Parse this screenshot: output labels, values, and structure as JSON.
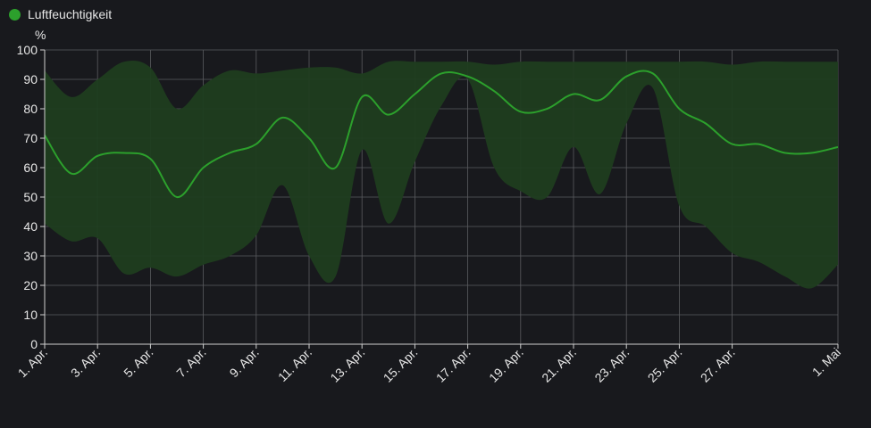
{
  "chart_data": {
    "type": "line",
    "yunit": "%",
    "ylim": [
      0,
      100
    ],
    "yticks": [
      0,
      10,
      20,
      30,
      40,
      50,
      60,
      70,
      80,
      90,
      100
    ],
    "grid": true,
    "legend_position": "top-left",
    "xlim": [
      1,
      31
    ],
    "xticks": [
      {
        "day": 1,
        "label": "1. Apr."
      },
      {
        "day": 3,
        "label": "3. Apr."
      },
      {
        "day": 5,
        "label": "5. Apr."
      },
      {
        "day": 7,
        "label": "7. Apr."
      },
      {
        "day": 9,
        "label": "9. Apr."
      },
      {
        "day": 11,
        "label": "11. Apr."
      },
      {
        "day": 13,
        "label": "13. Apr."
      },
      {
        "day": 15,
        "label": "15. Apr."
      },
      {
        "day": 17,
        "label": "17. Apr."
      },
      {
        "day": 19,
        "label": "19. Apr."
      },
      {
        "day": 21,
        "label": "21. Apr."
      },
      {
        "day": 23,
        "label": "23. Apr."
      },
      {
        "day": 25,
        "label": "25. Apr."
      },
      {
        "day": 27,
        "label": "27. Apr."
      },
      {
        "day": 31,
        "label": "1. Mai"
      }
    ],
    "series": [
      {
        "name": "Luftfeuchtigkeit",
        "color": "#2ca02c",
        "band_color": "#1f3d1f",
        "x": [
          1,
          2,
          3,
          4,
          5,
          6,
          7,
          8,
          9,
          10,
          11,
          12,
          13,
          14,
          15,
          16,
          17,
          18,
          19,
          20,
          21,
          22,
          23,
          24,
          25,
          26,
          27,
          28,
          29,
          30,
          31
        ],
        "avg": [
          71,
          58,
          64,
          65,
          63,
          50,
          60,
          65,
          68,
          77,
          70,
          60,
          84,
          78,
          85,
          92,
          91,
          86,
          79,
          80,
          85,
          83,
          91,
          92,
          80,
          75,
          68,
          68,
          65,
          65,
          67
        ],
        "max": [
          93,
          84,
          90,
          96,
          94,
          80,
          88,
          93,
          92,
          93,
          94,
          94,
          92,
          96,
          96,
          96,
          96,
          95,
          96,
          96,
          96,
          96,
          96,
          96,
          96,
          96,
          95,
          96,
          96,
          96,
          96
        ],
        "min": [
          41,
          35,
          36,
          24,
          26,
          23,
          27,
          30,
          37,
          54,
          30,
          23,
          66,
          41,
          62,
          81,
          90,
          60,
          52,
          50,
          67,
          51,
          75,
          87,
          47,
          40,
          31,
          28,
          23,
          19,
          27
        ]
      }
    ]
  }
}
